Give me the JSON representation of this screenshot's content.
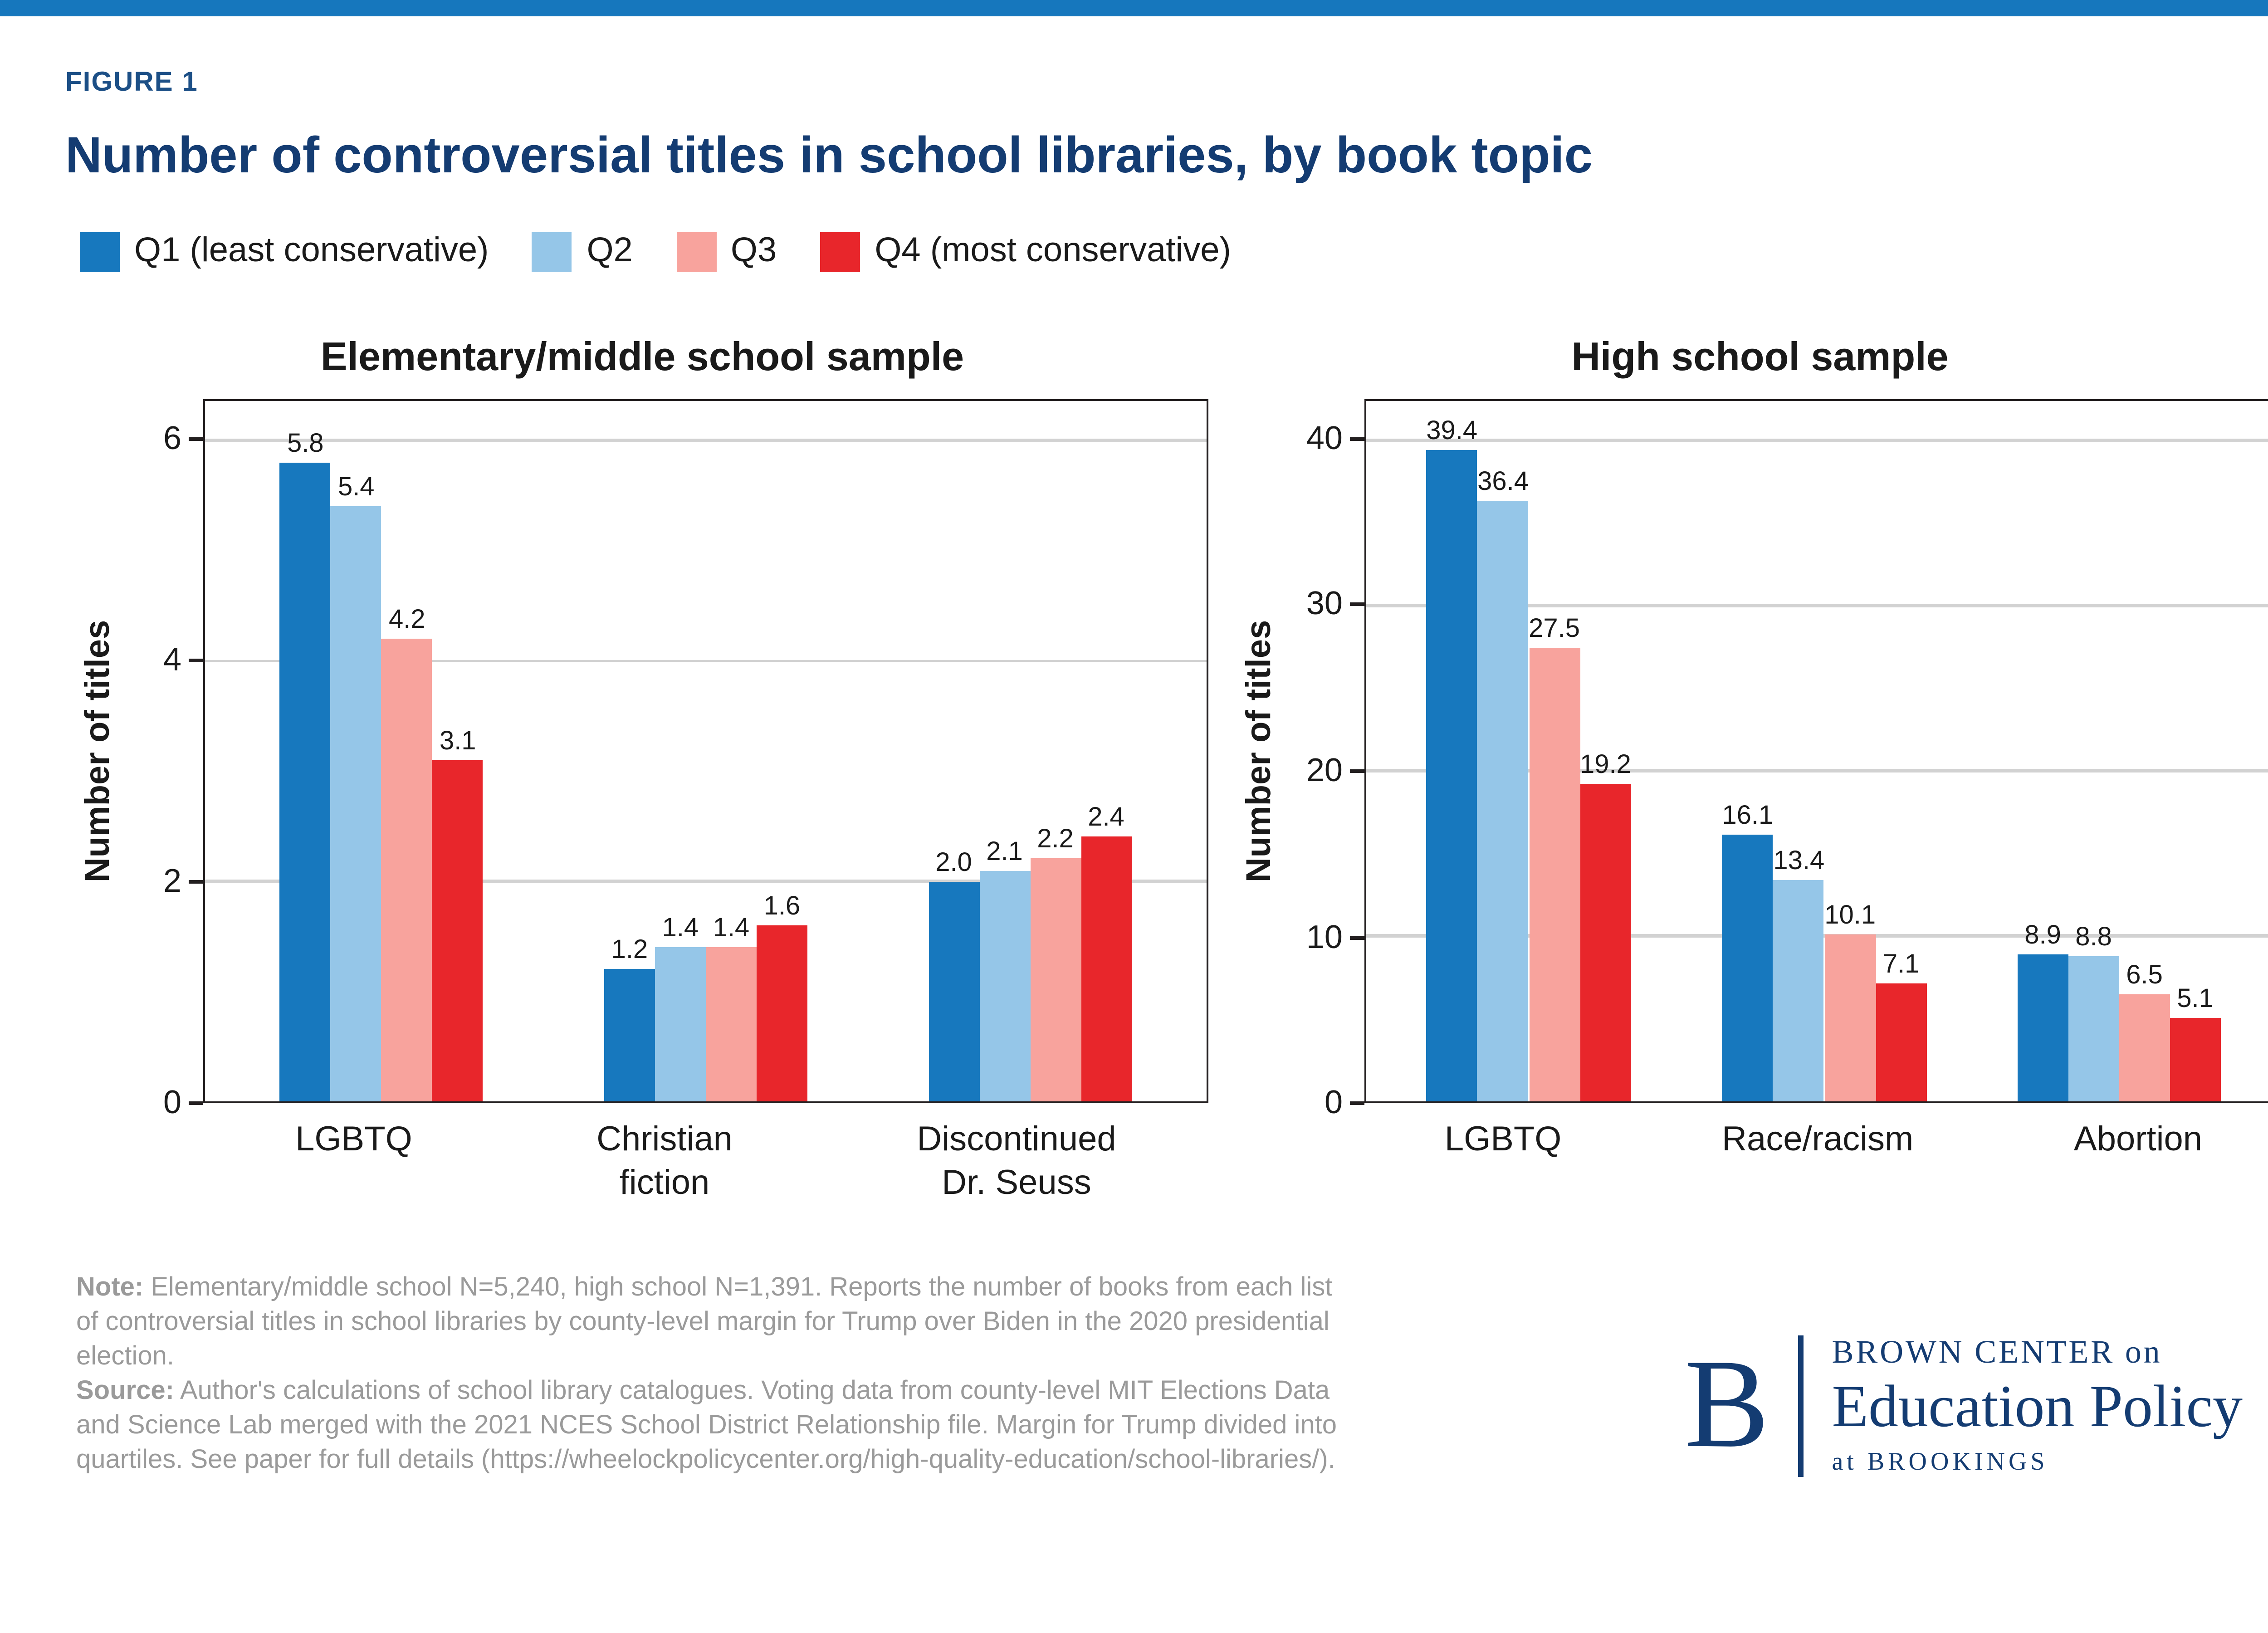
{
  "page": {
    "figure_label": "FIGURE 1",
    "title": "Number of controversial titles in school libraries, by book topic"
  },
  "colors": {
    "topbar": "#1677bd",
    "navy": "#143c72",
    "q1": "#1778be",
    "q2": "#95c6e8",
    "q3": "#f8a39d",
    "q4": "#e8262b",
    "gridline": "#d2d2d2",
    "note_gray": "#9a9a9a"
  },
  "legend": [
    {
      "label": "Q1 (least conservative)",
      "color": "#1778be"
    },
    {
      "label": "Q2",
      "color": "#95c6e8"
    },
    {
      "label": "Q3",
      "color": "#f8a39d"
    },
    {
      "label": "Q4 (most conservative)",
      "color": "#e8262b"
    }
  ],
  "chart_data": [
    {
      "type": "bar",
      "title": "Elementary/middle school sample",
      "ylabel": "Number of titles",
      "ylim": [
        0,
        6
      ],
      "yticks": [
        0,
        2,
        4,
        6
      ],
      "grid": true,
      "legend_position": "top-of-figure",
      "categories": [
        "LGBTQ",
        "Christian\nfiction",
        "Discontinued\nDr. Seuss"
      ],
      "series": [
        {
          "name": "Q1 (least conservative)",
          "values": [
            5.8,
            1.2,
            2.0
          ]
        },
        {
          "name": "Q2",
          "values": [
            5.4,
            1.4,
            2.1
          ]
        },
        {
          "name": "Q3",
          "values": [
            4.2,
            1.4,
            2.2
          ]
        },
        {
          "name": "Q4 (most conservative)",
          "values": [
            3.1,
            1.6,
            2.4
          ]
        }
      ]
    },
    {
      "type": "bar",
      "title": "High school sample",
      "ylabel": "Number of titles",
      "ylim": [
        0,
        40
      ],
      "yticks": [
        0,
        10,
        20,
        30,
        40
      ],
      "grid": true,
      "legend_position": "top-of-figure",
      "categories": [
        "LGBTQ",
        "Race/racism",
        "Abortion"
      ],
      "series": [
        {
          "name": "Q1 (least conservative)",
          "values": [
            39.4,
            16.1,
            8.9
          ]
        },
        {
          "name": "Q2",
          "values": [
            36.4,
            13.4,
            8.8
          ]
        },
        {
          "name": "Q3",
          "values": [
            27.5,
            10.1,
            6.5
          ]
        },
        {
          "name": "Q4 (most conservative)",
          "values": [
            19.2,
            7.1,
            5.1
          ]
        }
      ]
    }
  ],
  "notes": {
    "note_label": "Note:",
    "note_text": "Elementary/middle school N=5,240, high school N=1,391. Reports the number of books from each list of controversial titles in school libraries by county-level margin for Trump over Biden in the 2020 presidential election.",
    "source_label": "Source:",
    "source_text": "Author's calculations of school library catalogues. Voting data from county-level MIT Elections Data and Science Lab merged with the 2021 NCES School District Relationship file. Margin for Trump divided into quartiles. See paper for full details (https://wheelockpolicycenter.org/high-quality-education/school-libraries/)."
  },
  "logo": {
    "initial": "B",
    "line1": "BROWN CENTER on",
    "line2": "Education Policy",
    "line3": "at BROOKINGS"
  }
}
